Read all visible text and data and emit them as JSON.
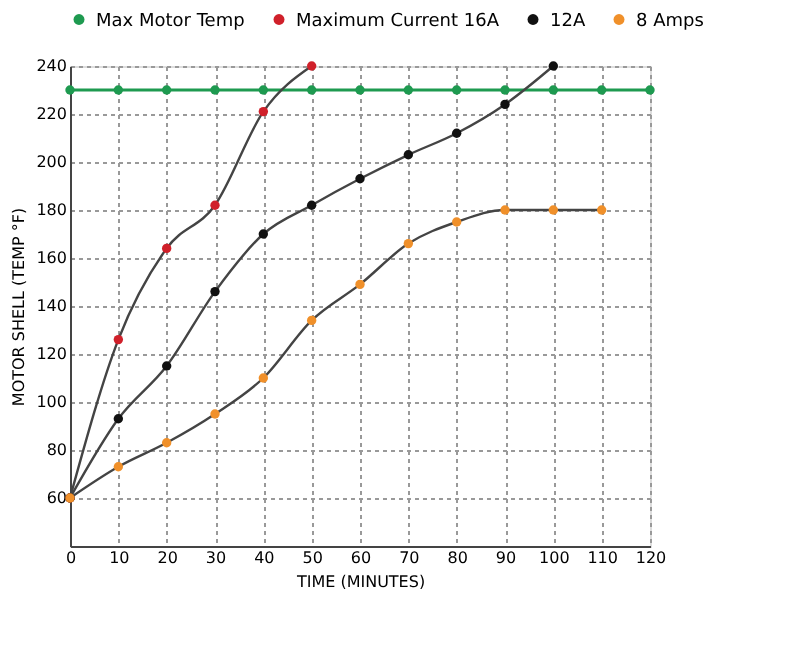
{
  "chart_data": {
    "type": "line",
    "xlabel": "TIME (MINUTES)",
    "ylabel": "MOTOR SHELL (TEMP °F)",
    "x": [
      0,
      10,
      20,
      30,
      40,
      50,
      60,
      70,
      80,
      90,
      100,
      110,
      120
    ],
    "series": [
      {
        "name": "Max Motor Temp",
        "color": "#1e9a50",
        "values": [
          230,
          230,
          230,
          230,
          230,
          230,
          230,
          230,
          230,
          230,
          230,
          230,
          230
        ]
      },
      {
        "name": "Maximum Current 16A",
        "color": "#d0202a",
        "values": [
          60,
          126,
          164,
          182,
          221,
          240,
          null,
          null,
          null,
          null,
          null,
          null,
          null
        ]
      },
      {
        "name": "12A",
        "color": "#111111",
        "values": [
          60,
          93,
          115,
          146,
          170,
          182,
          193,
          203,
          212,
          224,
          240,
          null,
          null
        ]
      },
      {
        "name": "8 Amps",
        "color": "#f0902a",
        "values": [
          60,
          73,
          83,
          95,
          110,
          134,
          149,
          166,
          175,
          180,
          180,
          180,
          null
        ]
      }
    ],
    "xlim": [
      0,
      120
    ],
    "xticks": [
      0,
      10,
      20,
      30,
      40,
      50,
      60,
      70,
      80,
      90,
      100,
      110,
      120
    ],
    "ylim": [
      40,
      240
    ],
    "yticks": [
      60,
      80,
      100,
      120,
      140,
      160,
      180,
      200,
      220,
      240
    ],
    "grid": true,
    "legend": "top",
    "marker": "circle",
    "line_style": "solid"
  }
}
